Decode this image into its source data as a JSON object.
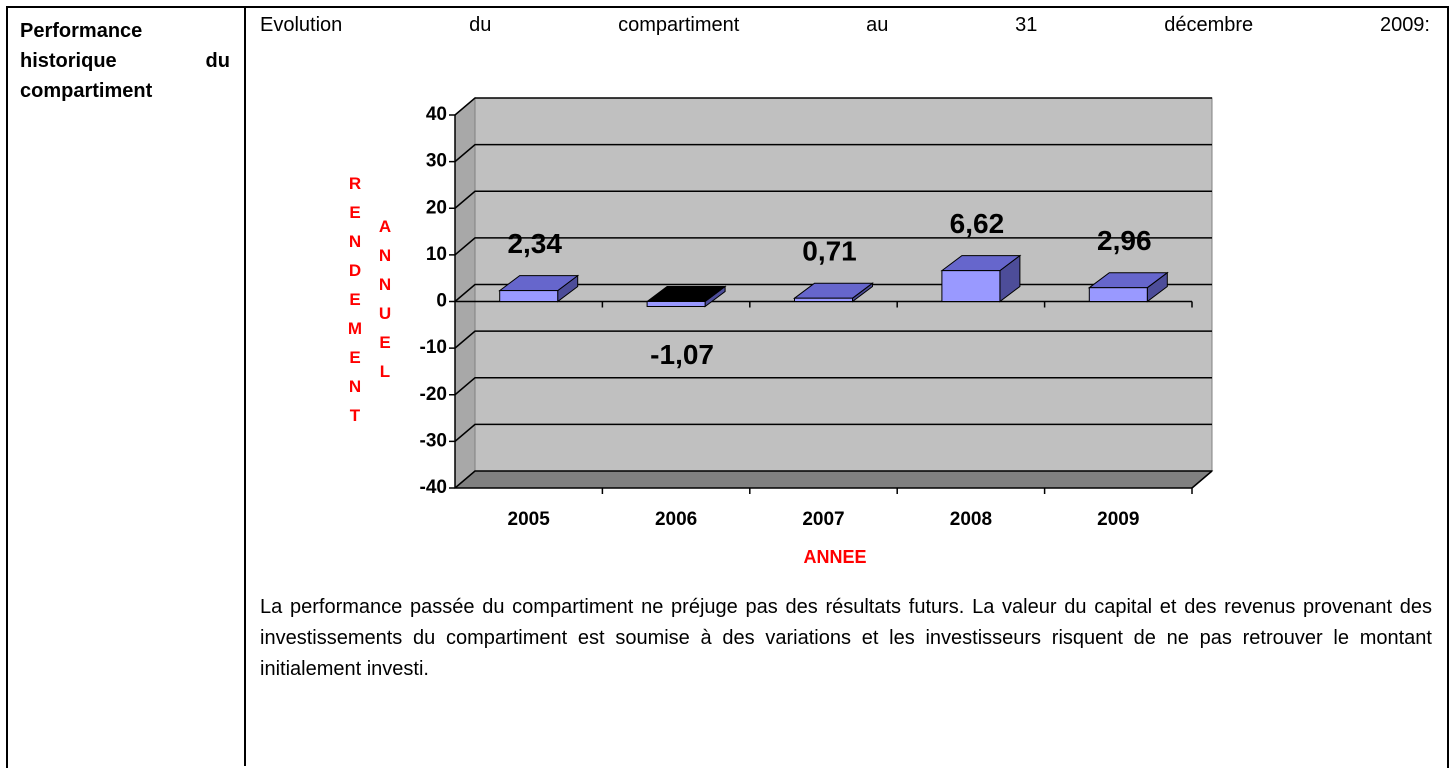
{
  "sidebar": {
    "title": "Performance historique du compartiment"
  },
  "intro": "Evolution du compartiment au 31 décembre 2009:",
  "chart_data": {
    "type": "bar",
    "xlabel": "ANNEE",
    "ylabel": "RENDEMENT ANNUEL",
    "categories": [
      "2005",
      "2006",
      "2007",
      "2008",
      "2009"
    ],
    "values": [
      2.34,
      -1.07,
      0.71,
      6.62,
      2.96
    ],
    "value_labels": [
      "2,34",
      "-1,07",
      "0,71",
      "6,62",
      "2,96"
    ],
    "color": "#9999ff",
    "ylim": [
      -40,
      40
    ],
    "yticks": [
      -40,
      -30,
      -20,
      -10,
      0,
      10,
      20,
      30,
      40
    ],
    "grid": true
  },
  "disclaimer": "La performance passée du compartiment ne préjuge pas des résultats futurs. La valeur du capital et des revenus provenant des investissements du compartiment est soumise à des variations et les investisseurs risquent de ne pas retrouver le montant initialement investi."
}
